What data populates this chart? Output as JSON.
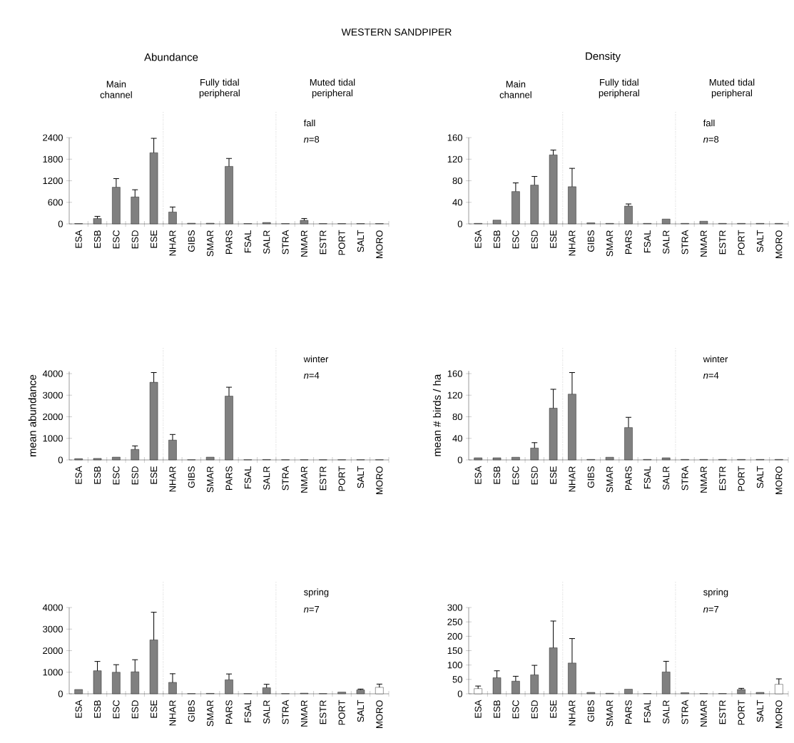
{
  "chart_data": [
    {
      "type": "bar",
      "title": "WESTERN SANDPIPER",
      "subtitle": "Abundance",
      "categories": [
        "ESA",
        "ESB",
        "ESC",
        "ESD",
        "ESE",
        "NHAR",
        "GIBS",
        "SMAR",
        "PARS",
        "FSAL",
        "SALR",
        "STRA",
        "NMAR",
        "ESTR",
        "PORT",
        "SALT",
        "MORO"
      ],
      "values": [
        10,
        150,
        1020,
        750,
        1980,
        330,
        20,
        20,
        1600,
        10,
        40,
        10,
        100,
        10,
        10,
        10,
        10
      ],
      "errors": [
        null,
        [
          150,
          210
        ],
        [
          1020,
          1260
        ],
        [
          750,
          950
        ],
        [
          1980,
          2380
        ],
        [
          330,
          470
        ],
        null,
        null,
        [
          1600,
          1820
        ],
        null,
        null,
        null,
        [
          100,
          150
        ],
        null,
        null,
        null,
        null
      ],
      "color": "#808080",
      "ylim": [
        0,
        2400
      ],
      "yticks": [
        0,
        600,
        1200,
        1800,
        2400
      ],
      "annotations": [
        "Main channel",
        "Fully tidal peripheral",
        "Muted tidal peripheral",
        "fall",
        "*n*=8"
      ]
    },
    {
      "type": "bar",
      "subtitle": "Density",
      "categories": [
        "ESA",
        "ESB",
        "ESC",
        "ESD",
        "ESE",
        "NHAR",
        "GIBS",
        "SMAR",
        "PARS",
        "FSAL",
        "SALR",
        "STRA",
        "NMAR",
        "ESTR",
        "PORT",
        "SALT",
        "MORO"
      ],
      "values": [
        1,
        7,
        60,
        72,
        128,
        69,
        2,
        1,
        33,
        1,
        9,
        1,
        5,
        1,
        1,
        1,
        1
      ],
      "errors": [
        null,
        null,
        [
          60,
          76
        ],
        [
          72,
          88
        ],
        [
          128,
          137
        ],
        [
          69,
          103
        ],
        null,
        null,
        [
          33,
          37
        ],
        null,
        null,
        null,
        null,
        null,
        null,
        null,
        null
      ],
      "color": "#808080",
      "ylim": [
        0,
        160
      ],
      "yticks": [
        0,
        40,
        80,
        120,
        160
      ],
      "annotations": [
        "Main channel",
        "Fully tidal peripheral",
        "Muted tidal peripheral",
        "fall",
        "*n*=8"
      ]
    },
    {
      "type": "bar",
      "ylabel": "mean abundance",
      "categories": [
        "ESA",
        "ESB",
        "ESC",
        "ESD",
        "ESE",
        "NHAR",
        "GIBS",
        "SMAR",
        "PARS",
        "FSAL",
        "SALR",
        "STRA",
        "NMAR",
        "ESTR",
        "PORT",
        "SALT",
        "MORO"
      ],
      "values": [
        60,
        70,
        130,
        490,
        3600,
        920,
        10,
        130,
        2960,
        10,
        20,
        10,
        10,
        10,
        10,
        10,
        10
      ],
      "errors": [
        null,
        null,
        null,
        [
          490,
          650
        ],
        [
          3600,
          4050
        ],
        [
          920,
          1180
        ],
        null,
        null,
        [
          2960,
          3370
        ],
        null,
        null,
        null,
        null,
        null,
        null,
        null,
        null
      ],
      "color": "#808080",
      "ylim": [
        0,
        4100
      ],
      "yticks": [
        0,
        1000,
        2000,
        3000,
        4000
      ],
      "annotations": [
        "winter",
        "*n*=4"
      ]
    },
    {
      "type": "bar",
      "ylabel": "mean # birds / ha",
      "categories": [
        "ESA",
        "ESB",
        "ESC",
        "ESD",
        "ESE",
        "NHAR",
        "GIBS",
        "SMAR",
        "PARS",
        "FSAL",
        "SALR",
        "STRA",
        "NMAR",
        "ESTR",
        "PORT",
        "SALT",
        "MORO"
      ],
      "values": [
        4,
        4,
        5,
        22,
        96,
        122,
        1,
        5,
        60,
        1,
        4,
        1,
        1,
        1,
        1,
        1,
        1
      ],
      "errors": [
        null,
        null,
        null,
        [
          22,
          32
        ],
        [
          96,
          131
        ],
        [
          122,
          162
        ],
        null,
        null,
        [
          60,
          79
        ],
        null,
        null,
        null,
        null,
        null,
        null,
        null,
        null
      ],
      "color": "#808080",
      "ylim": [
        0,
        165
      ],
      "yticks": [
        0,
        40,
        80,
        120,
        160
      ],
      "annotations": [
        "winter",
        "*n*=4"
      ]
    },
    {
      "type": "bar",
      "categories": [
        "ESA",
        "ESB",
        "ESC",
        "ESD",
        "ESE",
        "NHAR",
        "GIBS",
        "SMAR",
        "PARS",
        "FSAL",
        "SALR",
        "STRA",
        "NMAR",
        "ESTR",
        "PORT",
        "SALT",
        "MORO"
      ],
      "values": [
        200,
        1070,
        1000,
        1020,
        2500,
        530,
        10,
        20,
        650,
        10,
        280,
        10,
        30,
        10,
        80,
        180,
        300
      ],
      "errors": [
        null,
        [
          1070,
          1500
        ],
        [
          1000,
          1350
        ],
        [
          1020,
          1580
        ],
        [
          2500,
          3780
        ],
        [
          530,
          930
        ],
        null,
        null,
        [
          650,
          920
        ],
        null,
        [
          280,
          440
        ],
        null,
        null,
        null,
        null,
        [
          180,
          220
        ],
        [
          300,
          450
        ]
      ],
      "colors": [
        "#808080",
        "#808080",
        "#808080",
        "#808080",
        "#808080",
        "#808080",
        "#808080",
        "#808080",
        "#808080",
        "#808080",
        "#808080",
        "#808080",
        "#808080",
        "#808080",
        "#808080",
        "#808080",
        "#ffffff"
      ],
      "ylim": [
        0,
        4000
      ],
      "yticks": [
        0,
        1000,
        2000,
        3000,
        4000
      ],
      "annotations": [
        "spring",
        "*n*=7"
      ]
    },
    {
      "type": "bar",
      "categories": [
        "ESA",
        "ESB",
        "ESC",
        "ESD",
        "ESE",
        "NHAR",
        "GIBS",
        "SMAR",
        "PARS",
        "FSAL",
        "SALR",
        "STRA",
        "NMAR",
        "ESTR",
        "PORT",
        "SALT",
        "MORO"
      ],
      "values": [
        18,
        56,
        44,
        66,
        160,
        107,
        5,
        2,
        16,
        1,
        76,
        4,
        1,
        1,
        15,
        5,
        33
      ],
      "errors": [
        [
          18,
          27
        ],
        [
          56,
          80
        ],
        [
          44,
          61
        ],
        [
          66,
          99
        ],
        [
          160,
          253
        ],
        [
          107,
          192
        ],
        null,
        null,
        null,
        null,
        [
          76,
          113
        ],
        null,
        null,
        null,
        [
          15,
          19
        ],
        null,
        [
          33,
          52
        ]
      ],
      "colors": [
        "#ffffff",
        "#808080",
        "#808080",
        "#808080",
        "#808080",
        "#808080",
        "#808080",
        "#808080",
        "#808080",
        "#808080",
        "#808080",
        "#808080",
        "#808080",
        "#808080",
        "#808080",
        "#808080",
        "#ffffff"
      ],
      "ylim": [
        0,
        300
      ],
      "yticks": [
        0,
        50,
        100,
        150,
        200,
        250,
        300
      ],
      "annotations": [
        "spring",
        "*n*=7"
      ]
    }
  ]
}
